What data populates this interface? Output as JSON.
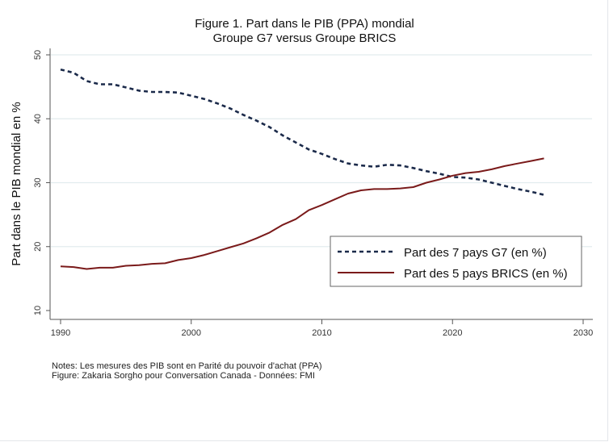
{
  "chart_data": {
    "type": "line",
    "title": "Figure 1. Part dans le PIB (PPA) mondial",
    "subtitle": "Groupe G7 versus Groupe BRICS",
    "xlabel": "",
    "ylabel": "Part dans le PIB mondial en %",
    "xlim": [
      1990,
      2030
    ],
    "ylim": [
      10,
      50
    ],
    "x_ticks": [
      1990,
      2000,
      2010,
      2020,
      2030
    ],
    "y_ticks": [
      10,
      20,
      30,
      40,
      50
    ],
    "grid": "horizontal",
    "legend_position": "lower-right",
    "x": [
      1990,
      1991,
      1992,
      1993,
      1994,
      1995,
      1996,
      1997,
      1998,
      1999,
      2000,
      2001,
      2002,
      2003,
      2004,
      2005,
      2006,
      2007,
      2008,
      2009,
      2010,
      2011,
      2012,
      2013,
      2014,
      2015,
      2016,
      2017,
      2018,
      2019,
      2020,
      2021,
      2022,
      2023,
      2024,
      2025,
      2026,
      2027
    ],
    "series": [
      {
        "name": "Part des 7 pays G7 (en %)",
        "style": "dashed",
        "color": "#1b2a4a",
        "values": [
          47.7,
          47.2,
          45.9,
          45.4,
          45.4,
          44.9,
          44.4,
          44.2,
          44.2,
          44.1,
          43.6,
          43.1,
          42.4,
          41.6,
          40.6,
          39.7,
          38.7,
          37.4,
          36.3,
          35.2,
          34.5,
          33.7,
          33.0,
          32.7,
          32.5,
          32.8,
          32.7,
          32.3,
          31.8,
          31.4,
          30.9,
          30.8,
          30.5,
          30.0,
          29.5,
          29.0,
          28.6,
          28.1
        ]
      },
      {
        "name": "Part des 5 pays BRICS (en %)",
        "style": "solid",
        "color": "#7a1a1a",
        "values": [
          16.9,
          16.8,
          16.5,
          16.7,
          16.7,
          17.0,
          17.1,
          17.3,
          17.4,
          17.9,
          18.2,
          18.7,
          19.3,
          19.9,
          20.5,
          21.3,
          22.2,
          23.4,
          24.3,
          25.7,
          26.5,
          27.4,
          28.3,
          28.8,
          29.0,
          29.0,
          29.1,
          29.3,
          30.0,
          30.5,
          31.1,
          31.5,
          31.7,
          32.1,
          32.6,
          33.0,
          33.4,
          33.8
        ]
      }
    ],
    "notes": [
      "Notes: Les mesures des PIB sont en Parité du pouvoir d'achat (PPA)",
      "Figure: Zakaria Sorgho pour Conversation Canada - Données: FMI"
    ]
  }
}
